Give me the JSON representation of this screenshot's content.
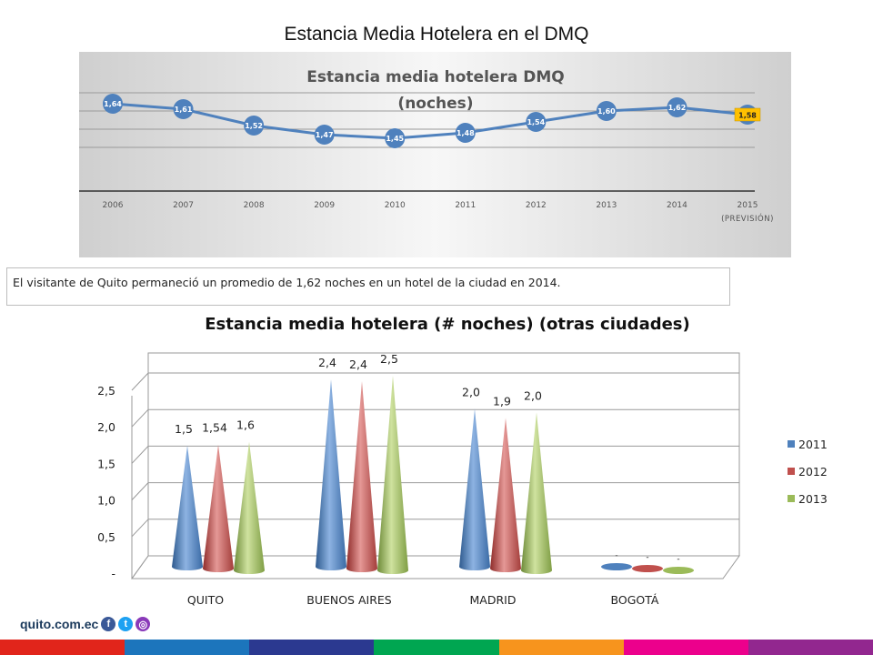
{
  "page_title": "Estancia Media Hotelera en el DMQ",
  "caption": "El visitante de Quito permaneció un promedio de 1,62 noches en un hotel de la ciudad en 2014.",
  "footer": {
    "site": "quito.com.ec",
    "social_icons": [
      "facebook-icon",
      "twitter-icon",
      "instagram-icon"
    ]
  },
  "colors": {
    "line": "#4f81bd",
    "highlight": "#ffc000",
    "series_2011": "#4f81bd",
    "series_2012": "#c0504d",
    "series_2013": "#9bbb59",
    "stripe": [
      "#e1251b",
      "#1c75bc",
      "#2b3990",
      "#00a651",
      "#f7941d",
      "#ec008c",
      "#92278f"
    ]
  },
  "chart_data": [
    {
      "type": "line",
      "title": "Estancia media hotelera DMQ",
      "subtitle": "(noches)",
      "categories": [
        "2006",
        "2007",
        "2008",
        "2009",
        "2010",
        "2011",
        "2012",
        "2013",
        "2014",
        "2015"
      ],
      "category_sublabels": [
        "",
        "",
        "",
        "",
        "",
        "",
        "",
        "",
        "",
        "(PREVISIÓN)"
      ],
      "values": [
        1.64,
        1.61,
        1.52,
        1.47,
        1.45,
        1.48,
        1.54,
        1.6,
        1.62,
        1.58
      ],
      "data_labels": [
        "1,64",
        "1,61",
        "1,52",
        "1,47",
        "1,45",
        "1,48",
        "1,54",
        "1,60",
        "1,62",
        "1,58"
      ],
      "highlighted_index": 9,
      "ylim": [
        1.3,
        1.7
      ],
      "grid": true,
      "legend": "none"
    },
    {
      "type": "bar",
      "style": "3d-cone",
      "title": "Estancia media hotelera (# noches) (otras ciudades)",
      "categories": [
        "QUITO",
        "BUENOS AIRES",
        "MADRID",
        "BOGOTÁ"
      ],
      "series": [
        {
          "name": "2011",
          "values": [
            1.5,
            2.4,
            2.0,
            0
          ],
          "labels": [
            "1,5",
            "2,4",
            "2,0",
            "-"
          ]
        },
        {
          "name": "2012",
          "values": [
            1.54,
            2.4,
            1.9,
            0
          ],
          "labels": [
            "1,54",
            "2,4",
            "1,9",
            "-"
          ]
        },
        {
          "name": "2013",
          "values": [
            1.6,
            2.5,
            2.0,
            0
          ],
          "labels": [
            "1,6",
            "2,5",
            "2,0",
            "-"
          ]
        }
      ],
      "y_ticks": [
        "-",
        "0,5",
        "1,0",
        "1,5",
        "2,0",
        "2,5"
      ],
      "y_tick_values": [
        0,
        0.5,
        1.0,
        1.5,
        2.0,
        2.5
      ],
      "ylim": [
        0,
        2.5
      ],
      "grid": true,
      "legend": "right"
    }
  ]
}
